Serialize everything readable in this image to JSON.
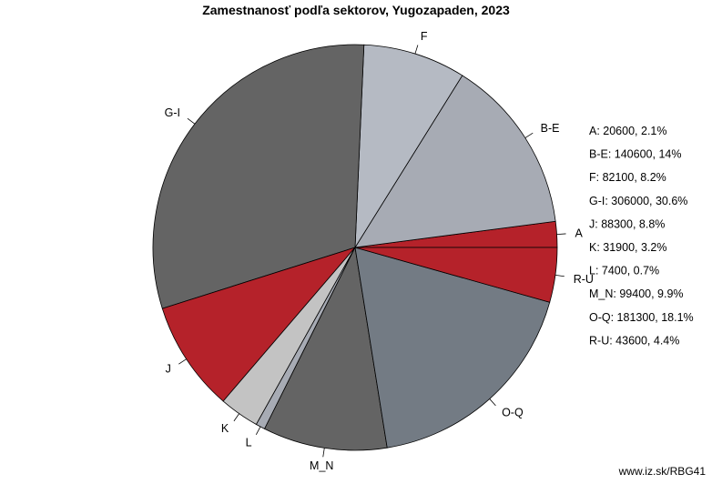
{
  "chart_data": {
    "type": "pie",
    "title": "Zamestnanosť podľa sektorov, Yugozapaden, 2023",
    "slices": [
      {
        "label": "A",
        "value": 20600,
        "percent": "2.1%",
        "color": "#b5222a"
      },
      {
        "label": "B-E",
        "value": 140600,
        "percent": "14%",
        "color": "#a7abb4"
      },
      {
        "label": "F",
        "value": 82100,
        "percent": "8.2%",
        "color": "#b5bac3"
      },
      {
        "label": "G-I",
        "value": 306000,
        "percent": "30.6%",
        "color": "#646464"
      },
      {
        "label": "J",
        "value": 88300,
        "percent": "8.8%",
        "color": "#b5222a"
      },
      {
        "label": "K",
        "value": 31900,
        "percent": "3.2%",
        "color": "#c3c3c3"
      },
      {
        "label": "L",
        "value": 7400,
        "percent": "0.7%",
        "color": "#a7abb4"
      },
      {
        "label": "M_N",
        "value": 99400,
        "percent": "9.9%",
        "color": "#646464"
      },
      {
        "label": "O-Q",
        "value": 181300,
        "percent": "18.1%",
        "color": "#737b84"
      },
      {
        "label": "R-U",
        "value": 43600,
        "percent": "4.4%",
        "color": "#b5222a"
      }
    ],
    "legend": [
      "A: 20600, 2.1%",
      "B-E: 140600, 14%",
      "F: 82100, 8.2%",
      "G-I: 306000, 30.6%",
      "J: 88300, 8.8%",
      "K: 31900, 3.2%",
      "L: 7400, 0.7%",
      "M_N: 99400, 9.9%",
      "O-Q: 181300, 18.1%",
      "R-U: 43600, 4.4%"
    ],
    "legend_position": "right",
    "source": "www.iz.sk/RBG41"
  }
}
